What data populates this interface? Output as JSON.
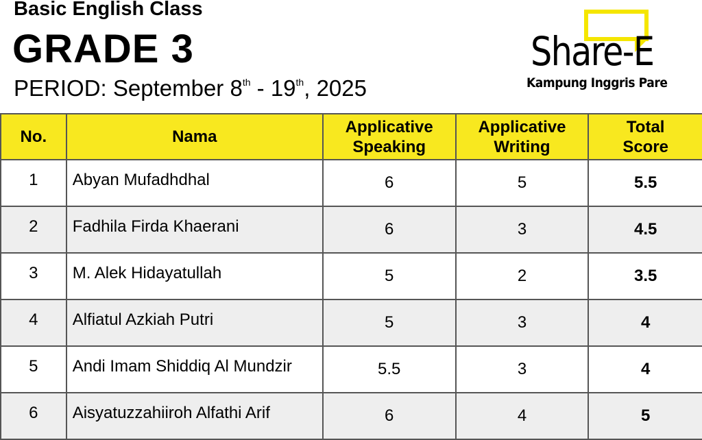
{
  "header": {
    "subtitle": "Basic English Class",
    "grade": "GRADE 3",
    "period_prefix": "PERIOD: September 8",
    "sup1": "th",
    "period_mid": " - 19",
    "sup2": "th",
    "period_suffix": ", 2025"
  },
  "logo": {
    "brand": "Share-E",
    "tagline": "Kampung Inggris Pare",
    "accent": "#f5e600"
  },
  "table": {
    "columns": [
      "No.",
      "Nama",
      "Applicative Speaking",
      "Applicative Writing",
      "Total Score"
    ],
    "rows": [
      {
        "no": "1",
        "name": "Abyan Mufadhdhal",
        "speaking": "6",
        "writing": "5",
        "total": "5.5"
      },
      {
        "no": "2",
        "name": "Fadhila Firda Khaerani",
        "speaking": "6",
        "writing": "3",
        "total": "4.5"
      },
      {
        "no": "3",
        "name": "M. Alek Hidayatullah",
        "speaking": "5",
        "writing": "2",
        "total": "3.5"
      },
      {
        "no": "4",
        "name": "Alfiatul Azkiah Putri",
        "speaking": "5",
        "writing": "3",
        "total": "4"
      },
      {
        "no": "5",
        "name": "Andi Imam Shiddiq Al Mundzir",
        "speaking": "5.5",
        "writing": "3",
        "total": "4"
      },
      {
        "no": "6",
        "name": "Aisyatuzzahiiroh Alfathi Arif",
        "speaking": "6",
        "writing": "4",
        "total": "5"
      }
    ]
  },
  "colors": {
    "header_bg": "#f8e81f",
    "alt_row": "#eeeeee"
  }
}
